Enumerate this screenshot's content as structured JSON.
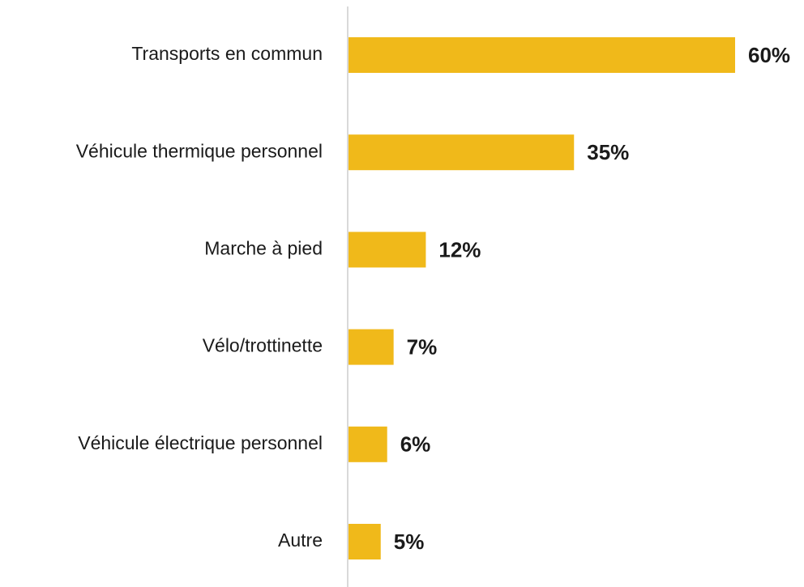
{
  "chart_data": {
    "type": "bar",
    "orientation": "horizontal",
    "categories": [
      "Transports en commun",
      "Véhicule thermique personnel",
      "Marche à pied",
      "Vélo/trottinette",
      "Véhicule électrique personnel",
      "Autre"
    ],
    "values": [
      60,
      35,
      12,
      7,
      6,
      5
    ],
    "value_labels": [
      "60%",
      "35%",
      "12%",
      "7%",
      "6%",
      "5%"
    ],
    "color": "#f0b91a"
  }
}
